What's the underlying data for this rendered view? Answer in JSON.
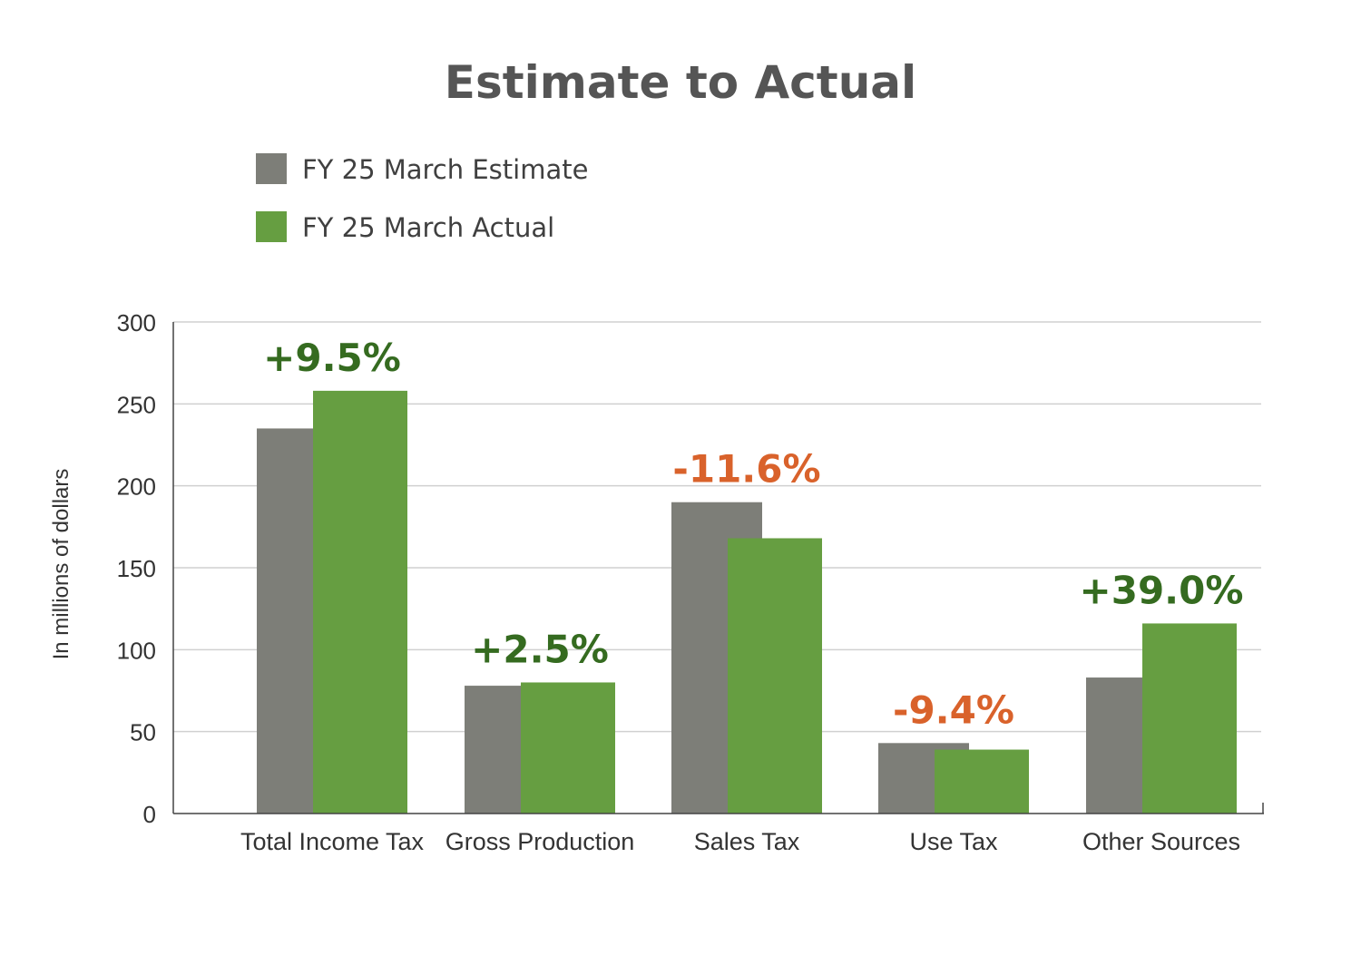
{
  "chart_data": {
    "type": "bar",
    "title": "Estimate to Actual",
    "ylabel": "In millions of dollars",
    "xlabel": "",
    "ylim": [
      0,
      300
    ],
    "yticks": [
      0,
      50,
      100,
      150,
      200,
      250,
      300
    ],
    "grid": true,
    "legend_position": "top-left",
    "categories": [
      "Total Income Tax",
      "Gross Production",
      "Sales Tax",
      "Use Tax",
      "Other Sources"
    ],
    "series": [
      {
        "name": "FY 25 March Estimate",
        "color": "#7d7e78",
        "values": [
          235,
          78,
          190,
          43,
          83
        ]
      },
      {
        "name": "FY 25 March Actual",
        "color": "#669e41",
        "values": [
          258,
          80,
          168,
          39,
          116
        ]
      }
    ],
    "annotations": [
      {
        "text": "+9.5%",
        "color": "#356b20"
      },
      {
        "text": "+2.5%",
        "color": "#356b20"
      },
      {
        "text": "-11.6%",
        "color": "#d9622b"
      },
      {
        "text": "-9.4%",
        "color": "#d9622b"
      },
      {
        "text": "+39.0%",
        "color": "#356b20"
      }
    ]
  }
}
